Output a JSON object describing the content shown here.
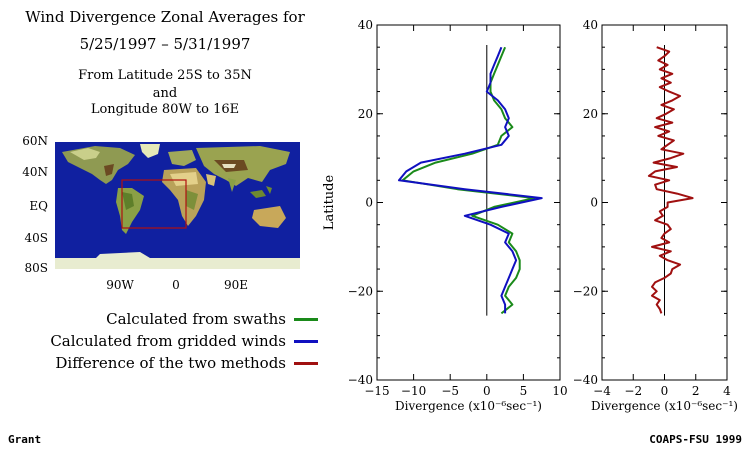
{
  "header": {
    "title": "Wind Divergence Zonal Averages for",
    "dates": "5/25/1997 – 5/31/1997",
    "region_line1": "From Latitude 25S to 35N",
    "region_line2": "and",
    "region_line3": "Longitude 80W to 16E"
  },
  "map": {
    "lat_labels": [
      "60N",
      "40N",
      "EQ",
      "40S",
      "80S"
    ],
    "lon_labels": [
      "90W",
      "0",
      "90E"
    ],
    "ocean_color": "#1020a0",
    "box_color": "#b01010"
  },
  "legend": {
    "items": [
      {
        "label": "Calculated from swaths",
        "color": "#1a8a1a"
      },
      {
        "label": "Calculated from gridded winds",
        "color": "#1010c0"
      },
      {
        "label": "Difference of the two methods",
        "color": "#a01010"
      }
    ]
  },
  "footer": {
    "left": "Grant",
    "right": "COAPS-FSU 1999"
  },
  "chart_data": [
    {
      "type": "line",
      "ylabel": "Latitude",
      "xlabel": "Divergence (x10⁻⁶sec⁻¹)",
      "xlim": [
        -15,
        10
      ],
      "ylim": [
        -40,
        40
      ],
      "xticks": [
        "−15",
        "−10",
        "−5",
        "0",
        "5",
        "10"
      ],
      "yticks": [
        "−40",
        "−20",
        "0",
        "20",
        "40"
      ],
      "series": [
        {
          "name": "Calculated from swaths",
          "color": "#1a8a1a",
          "y": [
            35,
            33,
            31,
            29,
            27,
            25,
            23,
            21,
            19,
            17,
            15,
            13,
            11,
            9,
            7,
            5,
            3,
            1,
            -1,
            -3,
            -5,
            -7,
            -9,
            -11,
            -13,
            -15,
            -17,
            -19,
            -21,
            -23,
            -25
          ],
          "x": [
            2.5,
            2,
            1.5,
            1,
            0.5,
            0.5,
            1,
            2,
            2.5,
            3.5,
            2,
            1.5,
            -2,
            -7,
            -10,
            -11.5,
            -4,
            6.5,
            1,
            -2,
            1.5,
            3.5,
            3,
            4,
            4.5,
            4.5,
            4,
            3,
            2.5,
            3.5,
            2
          ]
        },
        {
          "name": "Calculated from gridded winds",
          "color": "#1010c0",
          "y": [
            35,
            33,
            31,
            29,
            27,
            25,
            23,
            21,
            19,
            17,
            15,
            13,
            11,
            9,
            7,
            5,
            3,
            1,
            -1,
            -3,
            -5,
            -7,
            -9,
            -11,
            -13,
            -15,
            -17,
            -19,
            -21,
            -23,
            -25
          ],
          "x": [
            2,
            1.5,
            1,
            0.5,
            0.5,
            0,
            1.5,
            2.5,
            3,
            2.5,
            3,
            2,
            -3,
            -9,
            -11,
            -12,
            -3,
            7.5,
            2,
            -3,
            0.5,
            3,
            2.5,
            3.5,
            4,
            3.5,
            3,
            2.5,
            2,
            2.5,
            2.5
          ]
        }
      ]
    },
    {
      "type": "line",
      "xlabel": "Divergence (x10⁻⁶sec⁻¹)",
      "xlim": [
        -4,
        4
      ],
      "ylim": [
        -40,
        40
      ],
      "xticks": [
        "−4",
        "−2",
        "0",
        "2",
        "4"
      ],
      "yticks": [
        "−40",
        "−20",
        "0",
        "20",
        "40"
      ],
      "series": [
        {
          "name": "Difference of the two methods",
          "color": "#a01010",
          "y": [
            35,
            34,
            33,
            32,
            31,
            30,
            29,
            28,
            27,
            26,
            25,
            24,
            23,
            22,
            21,
            20,
            19,
            18,
            17,
            16,
            15,
            14,
            13,
            12,
            11,
            10,
            9,
            8,
            7,
            6,
            5,
            4,
            3,
            2,
            1,
            0,
            -1,
            -2,
            -3,
            -4,
            -5,
            -6,
            -7,
            -8,
            -9,
            -10,
            -11,
            -12,
            -13,
            -14,
            -15,
            -16,
            -17,
            -18,
            -19,
            -20,
            -21,
            -22,
            -23,
            -24,
            -25
          ],
          "x": [
            -0.5,
            0.3,
            0,
            -0.4,
            0.2,
            -0.3,
            0.5,
            -0.2,
            0.4,
            -0.3,
            0.3,
            1.0,
            0.5,
            -0.2,
            0.6,
            0.1,
            -0.5,
            0.5,
            -0.6,
            0.3,
            -0.4,
            0.6,
            0.2,
            -0.2,
            1.2,
            0.4,
            -0.7,
            0.8,
            -0.6,
            -1.0,
            0.3,
            -0.6,
            -0.5,
            0.8,
            1.8,
            0.2,
            0.2,
            -0.3,
            -0.1,
            -0.6,
            0.2,
            0.4,
            0.0,
            -0.2,
            0.3,
            -0.8,
            0.4,
            -0.3,
            0.2,
            1.0,
            0.5,
            0.4,
            0.0,
            -0.6,
            -0.8,
            -0.5,
            -0.8,
            -0.3,
            -0.5,
            -0.3,
            -0.2
          ]
        }
      ]
    }
  ]
}
